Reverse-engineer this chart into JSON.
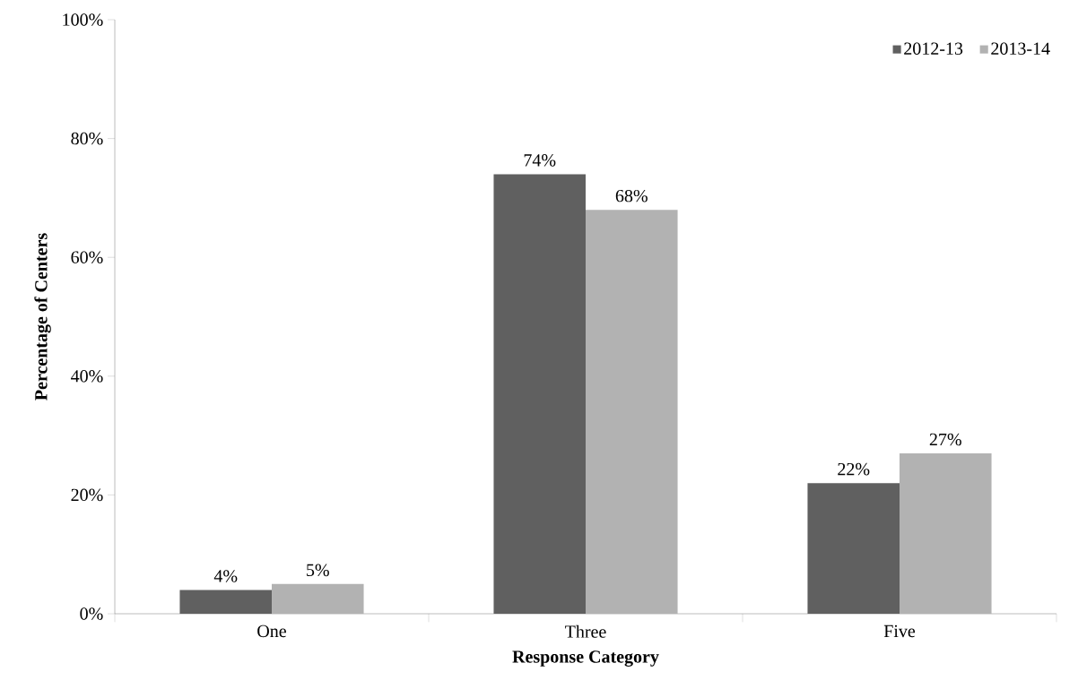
{
  "chart_data": {
    "type": "bar",
    "xlabel": "Response Category",
    "ylabel": "Percentage of Centers",
    "categories": [
      "One",
      "Three",
      "Five"
    ],
    "series": [
      {
        "name": "2012-13",
        "color": "#606060",
        "values": [
          4,
          74,
          22
        ],
        "value_labels": [
          "4%",
          "74%",
          "22%"
        ]
      },
      {
        "name": "2013-14",
        "color": "#b2b2b2",
        "values": [
          5,
          68,
          27
        ],
        "value_labels": [
          "5%",
          "68%",
          "27%"
        ]
      }
    ],
    "ylim": [
      0,
      100
    ],
    "yticks": [
      {
        "value": 0,
        "label": "0%"
      },
      {
        "value": 20,
        "label": "20%"
      },
      {
        "value": 40,
        "label": "40%"
      },
      {
        "value": 60,
        "label": "60%"
      },
      {
        "value": 80,
        "label": "80%"
      },
      {
        "value": 100,
        "label": "100%"
      }
    ],
    "legend": "top right"
  }
}
